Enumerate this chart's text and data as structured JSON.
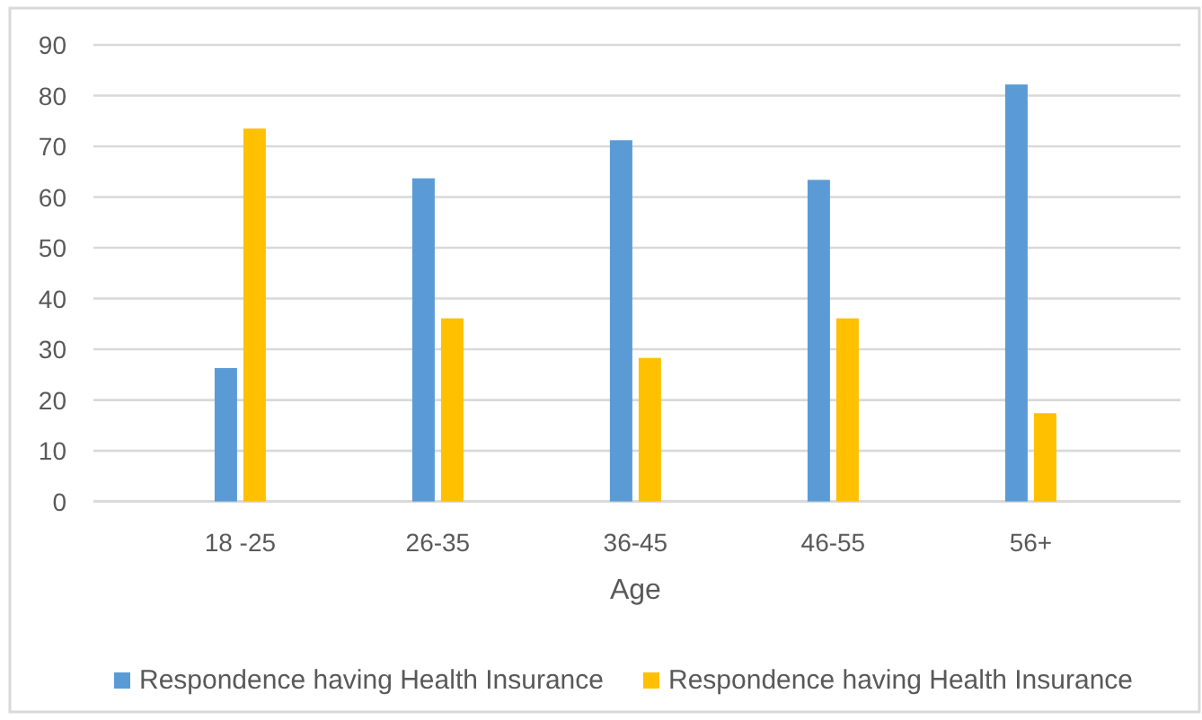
{
  "chart_data": {
    "type": "bar",
    "xlabel": "Age",
    "categories": [
      "18 -25",
      "26-35",
      "36-45",
      "46-55",
      "56+"
    ],
    "series": [
      {
        "name": "Respondence having Health Insurance",
        "color": "#5b9bd5",
        "values": [
          26.3,
          63.7,
          71.2,
          63.4,
          82.2
        ]
      },
      {
        "name": "Respondence having Health Insurance",
        "color": "#ffc000",
        "values": [
          73.5,
          36.1,
          28.3,
          36.1,
          17.4
        ]
      }
    ],
    "ylim": [
      0,
      90
    ],
    "yticks": [
      0,
      10,
      20,
      30,
      40,
      50,
      60,
      70,
      80,
      90
    ],
    "grid": "y",
    "legend": "bottom"
  }
}
